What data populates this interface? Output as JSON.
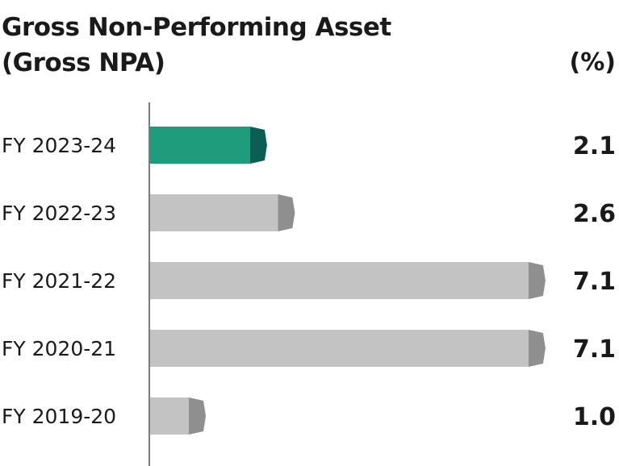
{
  "chart_data": {
    "type": "bar",
    "orientation": "horizontal",
    "title_lines": [
      "Gross Non-Performing Asset",
      "(Gross NPA)"
    ],
    "unit_label": "(%)",
    "categories": [
      "FY 2023-24",
      "FY 2022-23",
      "FY 2021-22",
      "FY 2020-21",
      "FY 2019-20"
    ],
    "values": [
      2.1,
      2.6,
      7.1,
      7.1,
      1.0
    ],
    "value_labels": [
      "2.1",
      "2.6",
      "7.1",
      "7.1",
      "1.0"
    ],
    "highlight_index": 0,
    "grid": false,
    "colors": {
      "highlight": "#1e9c7c",
      "highlight_cap": "#0b5e54",
      "bar": "#c3c3c3",
      "bar_cap": "#8f8f8f",
      "axis": "#7a7a7a"
    }
  }
}
